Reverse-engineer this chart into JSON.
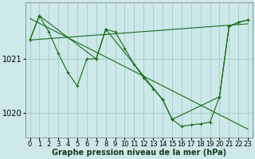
{
  "background_color": "#cce8e8",
  "grid_color": "#aacfcf",
  "line_color": "#1a6b1a",
  "xlabel": "Graphe pression niveau de la mer (hPa)",
  "xlabel_fontsize": 7,
  "tick_label_fontsize": 6,
  "ytick_label_fontsize": 7,
  "ylim": [
    1019.55,
    1022.05
  ],
  "yticks": [
    1020.0,
    1021.0
  ],
  "xlim": [
    -0.5,
    23.5
  ],
  "xticks": [
    0,
    1,
    2,
    3,
    4,
    5,
    6,
    7,
    8,
    9,
    10,
    11,
    12,
    13,
    14,
    15,
    16,
    17,
    18,
    19,
    20,
    21,
    22,
    23
  ],
  "line1_x": [
    0,
    23
  ],
  "line1_y": [
    1021.75,
    1019.7
  ],
  "line2_x": [
    0,
    23
  ],
  "line2_y": [
    1021.35,
    1021.65
  ],
  "obs_x": [
    0,
    1,
    2,
    3,
    4,
    5,
    6,
    7,
    8,
    9,
    10,
    11,
    12,
    13,
    14,
    15,
    16,
    17,
    18,
    19,
    20,
    21,
    22,
    23
  ],
  "obs_y": [
    1021.35,
    1021.8,
    1021.5,
    1021.1,
    1020.75,
    1020.5,
    1021.0,
    1021.0,
    1021.55,
    1021.5,
    1021.2,
    1020.9,
    1020.65,
    1020.45,
    1020.25,
    1019.88,
    1019.75,
    1019.78,
    1019.8,
    1019.83,
    1020.3,
    1021.6,
    1021.68,
    1021.72
  ],
  "seg_x": [
    0,
    1,
    7,
    8,
    14,
    15,
    20,
    21,
    22,
    23
  ],
  "seg_y": [
    1021.35,
    1021.8,
    1021.0,
    1021.55,
    1020.25,
    1019.88,
    1020.3,
    1021.6,
    1021.68,
    1021.72
  ]
}
